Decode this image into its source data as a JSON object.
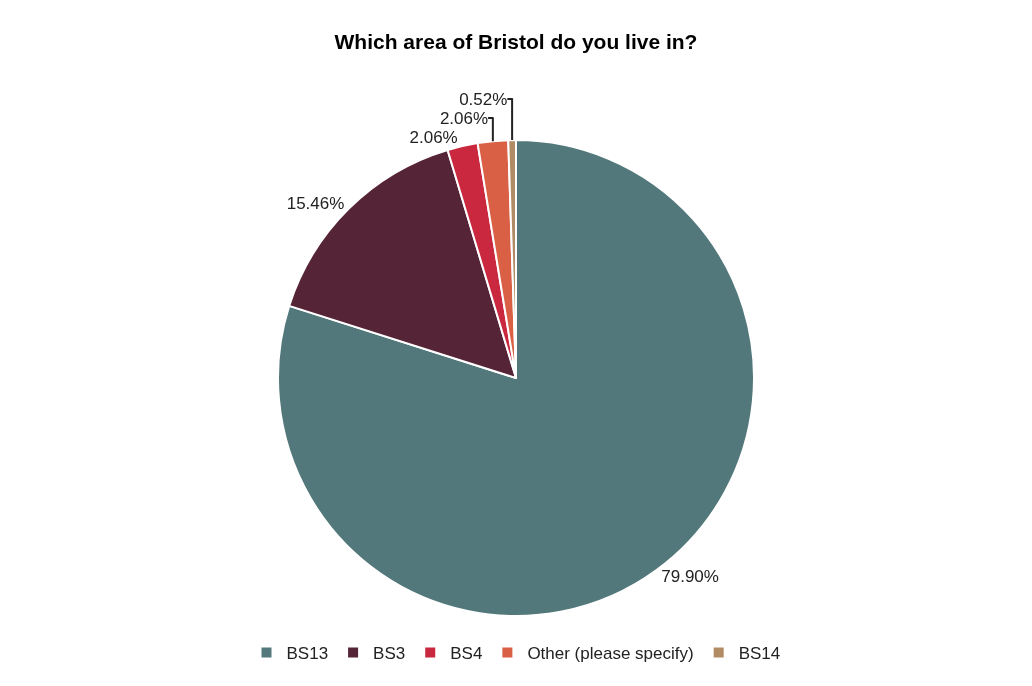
{
  "chart_data": {
    "type": "pie",
    "title": "Which area of Bristol do you live in?",
    "categories": [
      "BS13",
      "BS3",
      "BS4",
      "Other (please specify)",
      "BS14"
    ],
    "values": [
      79.9,
      15.46,
      2.06,
      2.06,
      0.52
    ],
    "value_labels": [
      "79.90%",
      "15.46%",
      "2.06%",
      "2.06%",
      "0.52%"
    ],
    "colors": [
      "#52787b",
      "#552436",
      "#c9283f",
      "#d95f45",
      "#b08b64"
    ],
    "legend": "bottom"
  }
}
